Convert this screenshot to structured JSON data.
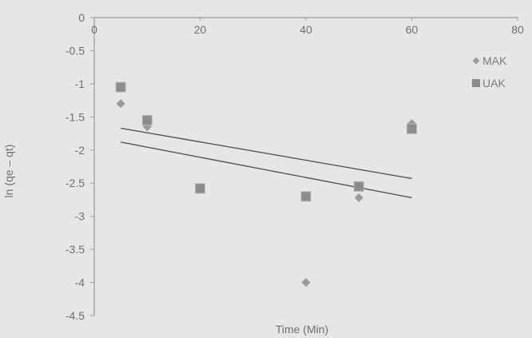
{
  "chart_data": {
    "type": "scatter",
    "xlabel": "Time (Min)",
    "ylabel": "ln (qe – qt)",
    "xlim": [
      0,
      80
    ],
    "ylim": [
      -4.5,
      0
    ],
    "xticks": [
      0,
      20,
      40,
      60,
      80
    ],
    "yticks": [
      0,
      -0.5,
      -1,
      -1.5,
      -2,
      -2.5,
      -3,
      -3.5,
      -4,
      -4.5
    ],
    "xtick_labels": [
      "0",
      "20",
      "40",
      "60",
      "80"
    ],
    "ytick_labels": [
      "0",
      "-0.5",
      "-1",
      "-1.5",
      "-2",
      "-2.5",
      "-3",
      "-3.5",
      "-4",
      "-4.5"
    ],
    "legend_position": "right",
    "x_axis_position": "top",
    "grid": false,
    "series": [
      {
        "name": "MAK",
        "marker": "diamond",
        "color": "#9a9a9a",
        "x": [
          5,
          10,
          20,
          40,
          50,
          60
        ],
        "y": [
          -1.3,
          -1.65,
          -2.6,
          -4.0,
          -2.72,
          -1.6
        ]
      },
      {
        "name": "UAK",
        "marker": "square",
        "color": "#8c8c8c",
        "x": [
          5,
          10,
          20,
          40,
          50,
          60
        ],
        "y": [
          -1.05,
          -1.55,
          -2.58,
          -2.7,
          -2.55,
          -1.68
        ]
      }
    ],
    "trendlines": [
      {
        "series": "MAK",
        "x": [
          5,
          60
        ],
        "y": [
          -1.88,
          -2.72
        ],
        "color": "#555555"
      },
      {
        "series": "UAK",
        "x": [
          5,
          60
        ],
        "y": [
          -1.67,
          -2.43
        ],
        "color": "#555555"
      }
    ]
  }
}
